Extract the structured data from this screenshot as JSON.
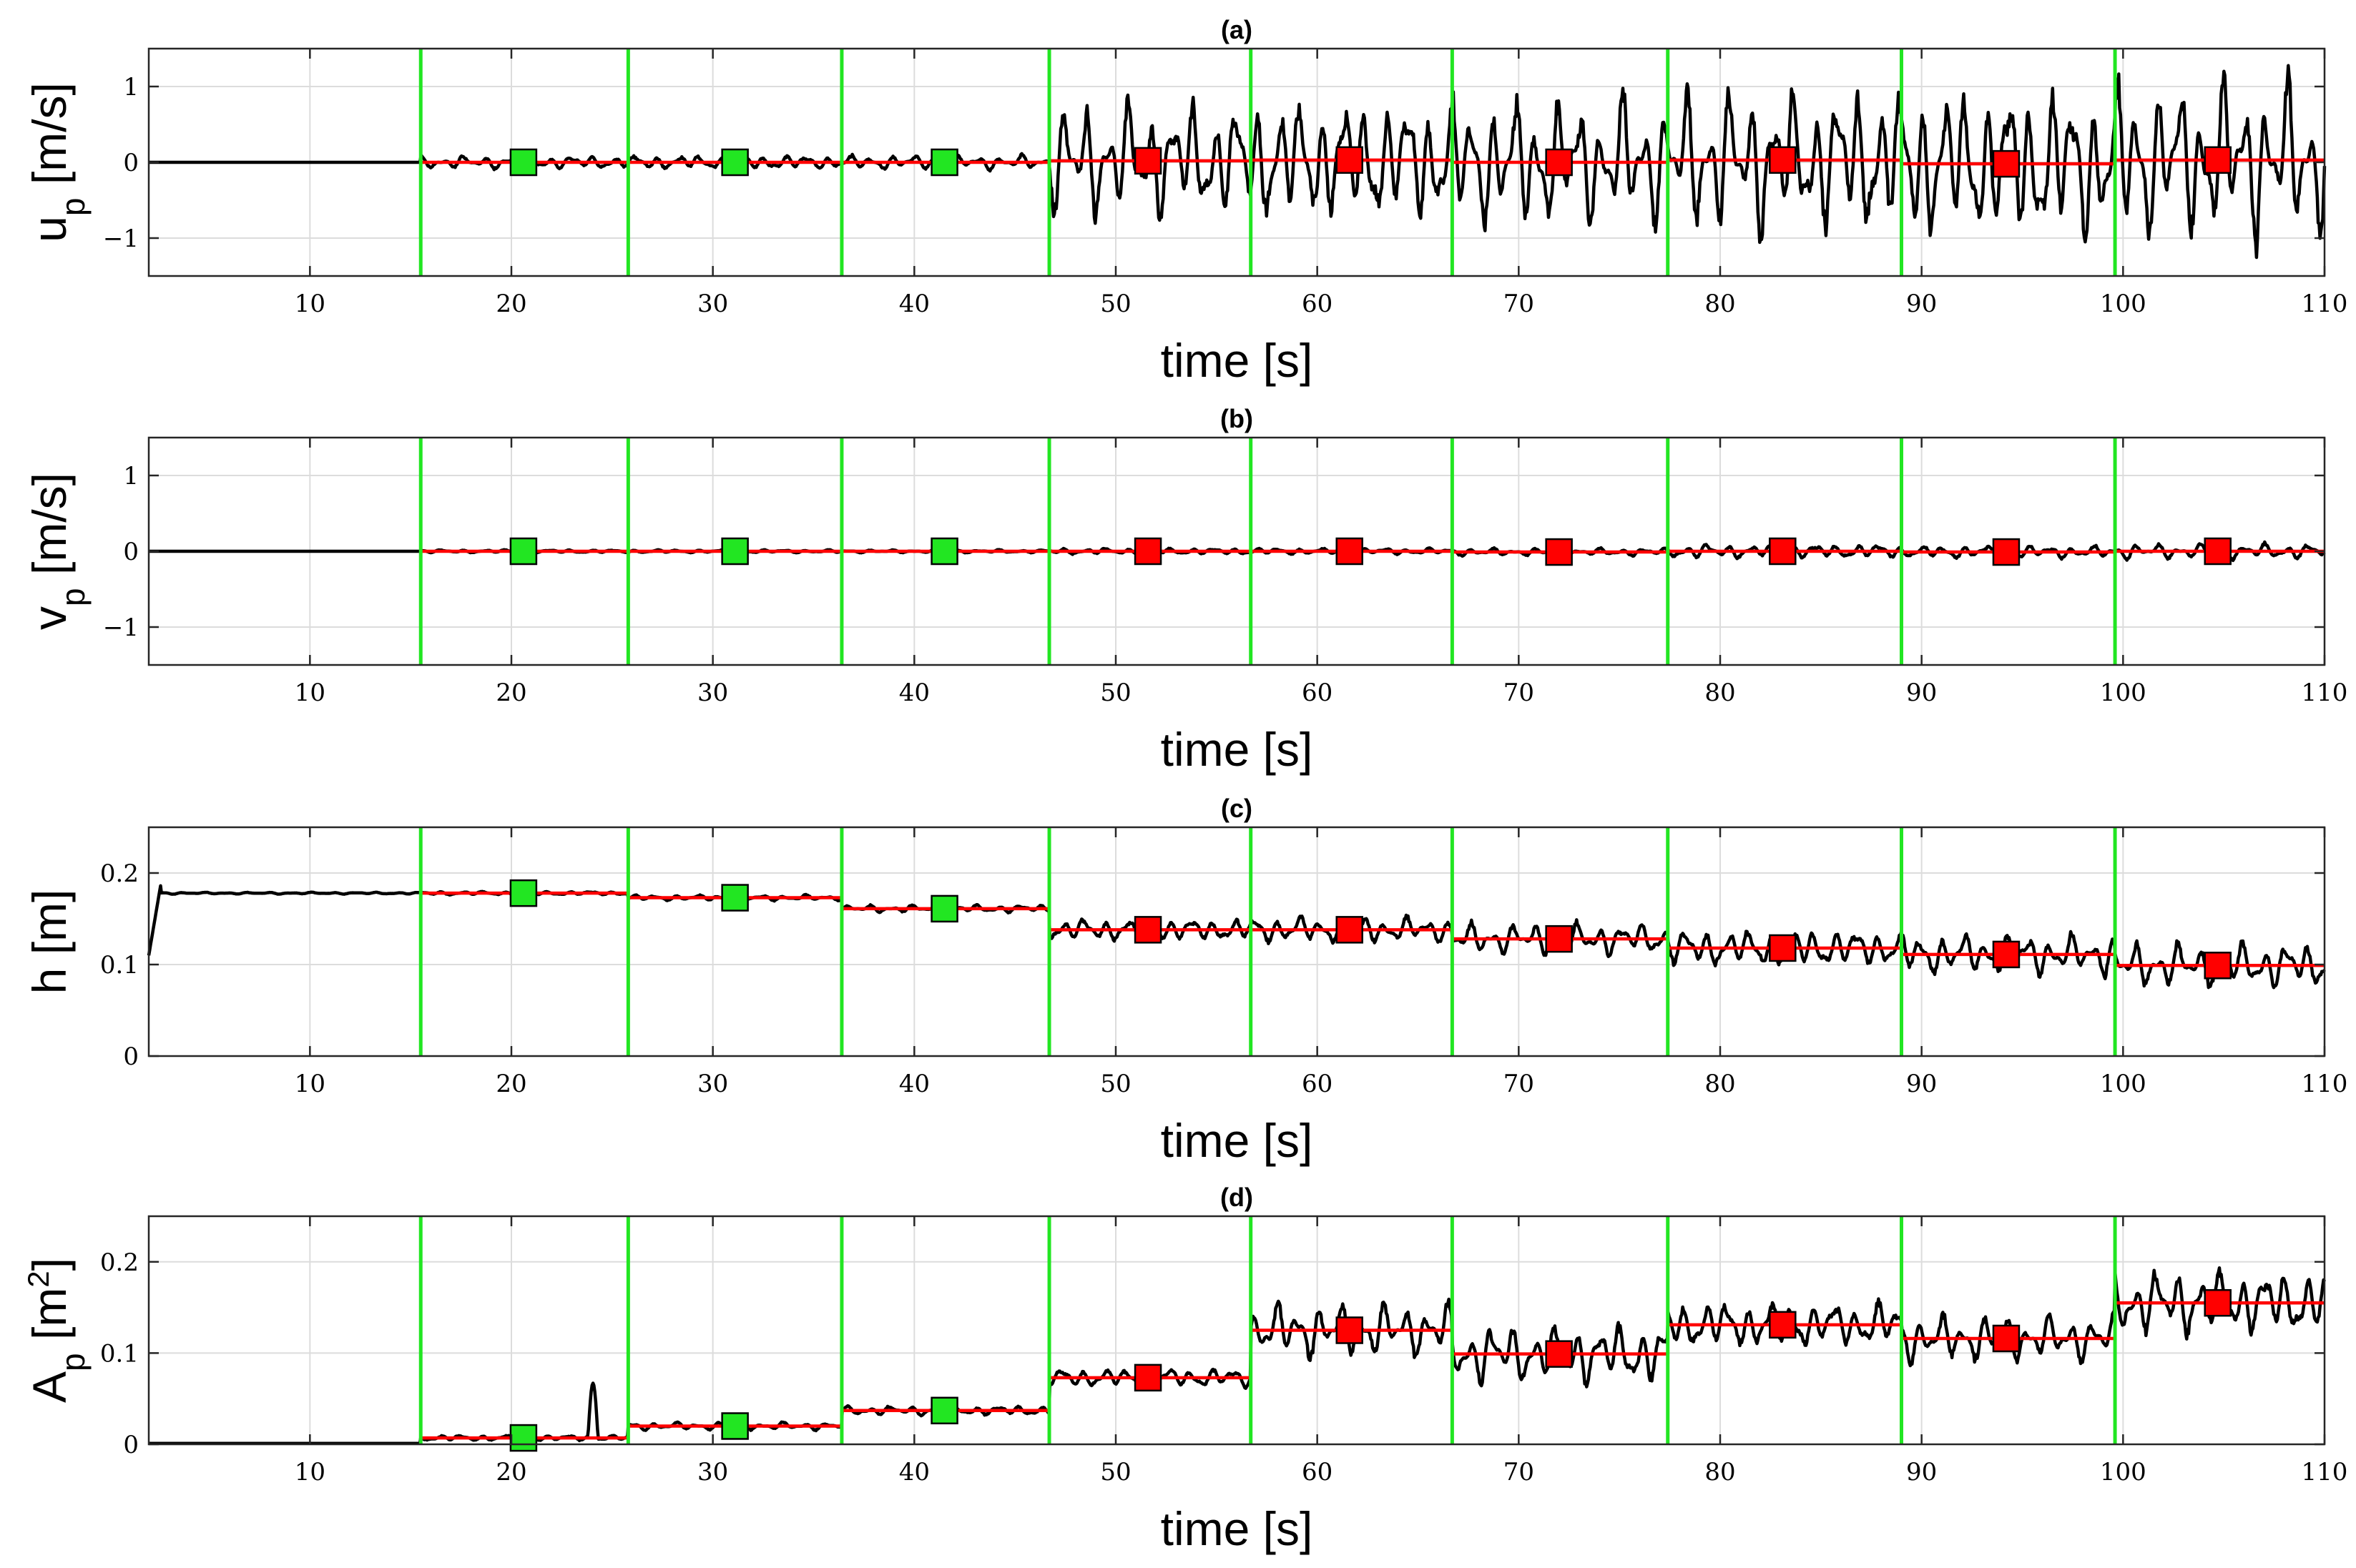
{
  "chart_data": [
    {
      "type": "line",
      "panel_label": "(a)",
      "xlabel": "time [s]",
      "ylabel": {
        "main": "u",
        "sub": "p",
        "rest": " [m/s]"
      },
      "xlim": [
        2,
        110
      ],
      "ylim": [
        -1.5,
        1.5
      ],
      "xticks": [
        10,
        20,
        30,
        40,
        50,
        60,
        70,
        80,
        90,
        100,
        110
      ],
      "xtick_labels": [
        "10",
        "20",
        "30",
        "40",
        "50",
        "60",
        "70",
        "80",
        "90",
        "100",
        "110"
      ],
      "yticks": [
        -1,
        0,
        1
      ],
      "ytick_labels": [
        "−1",
        "0",
        "1"
      ],
      "boundaries": [
        15.5,
        25.8,
        36.4,
        46.7,
        56.7,
        66.7,
        77.4,
        89.0,
        99.6
      ],
      "signal": {
        "initial": 0,
        "noise_amplitudes": [
          0,
          0.08,
          0.09,
          0.09,
          0.75,
          0.8,
          0.85,
          0.95,
          1.0,
          1.05
        ]
      },
      "segment_means": [
        0.0,
        0.0,
        0.0,
        0.02,
        0.03,
        0.0,
        0.03,
        -0.02,
        0.03
      ],
      "markers": [
        {
          "x": 20.6,
          "y": 0.0,
          "color": "green"
        },
        {
          "x": 31.1,
          "y": 0.0,
          "color": "green"
        },
        {
          "x": 41.5,
          "y": 0.0,
          "color": "green"
        },
        {
          "x": 51.6,
          "y": 0.02,
          "color": "red"
        },
        {
          "x": 61.6,
          "y": 0.03,
          "color": "red"
        },
        {
          "x": 72.0,
          "y": 0.0,
          "color": "red"
        },
        {
          "x": 83.1,
          "y": 0.03,
          "color": "red"
        },
        {
          "x": 94.2,
          "y": -0.02,
          "color": "red"
        },
        {
          "x": 104.7,
          "y": 0.03,
          "color": "red"
        }
      ]
    },
    {
      "type": "line",
      "panel_label": "(b)",
      "xlabel": "time [s]",
      "ylabel": {
        "main": "v",
        "sub": "p",
        "rest": " [m/s]"
      },
      "xlim": [
        2,
        110
      ],
      "ylim": [
        -1.5,
        1.5
      ],
      "xticks": [
        10,
        20,
        30,
        40,
        50,
        60,
        70,
        80,
        90,
        100,
        110
      ],
      "xtick_labels": [
        "10",
        "20",
        "30",
        "40",
        "50",
        "60",
        "70",
        "80",
        "90",
        "100",
        "110"
      ],
      "yticks": [
        -1,
        0,
        1
      ],
      "ytick_labels": [
        "−1",
        "0",
        "1"
      ],
      "boundaries": [
        15.5,
        25.8,
        36.4,
        46.7,
        56.7,
        66.7,
        77.4,
        89.0,
        99.6
      ],
      "signal": {
        "initial": 0,
        "noise_amplitudes": [
          0,
          0.02,
          0.02,
          0.02,
          0.04,
          0.04,
          0.05,
          0.09,
          0.08,
          0.1
        ]
      },
      "segment_means": [
        0.0,
        0.0,
        0.0,
        0.0,
        0.0,
        -0.01,
        0.0,
        -0.01,
        0.0
      ],
      "markers": [
        {
          "x": 20.6,
          "y": 0.0,
          "color": "green"
        },
        {
          "x": 31.1,
          "y": 0.0,
          "color": "green"
        },
        {
          "x": 41.5,
          "y": 0.0,
          "color": "green"
        },
        {
          "x": 51.6,
          "y": 0.0,
          "color": "red"
        },
        {
          "x": 61.6,
          "y": 0.0,
          "color": "red"
        },
        {
          "x": 72.0,
          "y": -0.01,
          "color": "red"
        },
        {
          "x": 83.1,
          "y": 0.0,
          "color": "red"
        },
        {
          "x": 94.2,
          "y": -0.01,
          "color": "red"
        },
        {
          "x": 104.7,
          "y": 0.0,
          "color": "red"
        }
      ]
    },
    {
      "type": "line",
      "panel_label": "(c)",
      "xlabel": "time [s]",
      "ylabel": {
        "main": "h [m]",
        "sub": "",
        "rest": ""
      },
      "xlim": [
        2,
        110
      ],
      "ylim": [
        0,
        0.25
      ],
      "xticks": [
        10,
        20,
        30,
        40,
        50,
        60,
        70,
        80,
        90,
        100,
        110
      ],
      "xtick_labels": [
        "10",
        "20",
        "30",
        "40",
        "50",
        "60",
        "70",
        "80",
        "90",
        "100",
        "110"
      ],
      "yticks": [
        0,
        0.1,
        0.2
      ],
      "ytick_labels": [
        "0",
        "0.1",
        "0.2"
      ],
      "boundaries": [
        15.5,
        25.8,
        36.4,
        46.7,
        56.7,
        66.7,
        77.4,
        89.0,
        99.6
      ],
      "signal": {
        "initial": 0.178,
        "noise_amplitudes": [
          0.001,
          0.002,
          0.003,
          0.004,
          0.012,
          0.014,
          0.017,
          0.02,
          0.022,
          0.024
        ]
      },
      "segment_means": [
        0.178,
        0.173,
        0.161,
        0.138,
        0.138,
        0.128,
        0.118,
        0.111,
        0.099
      ],
      "markers": [
        {
          "x": 20.6,
          "y": 0.178,
          "color": "green"
        },
        {
          "x": 31.1,
          "y": 0.173,
          "color": "green"
        },
        {
          "x": 41.5,
          "y": 0.161,
          "color": "green"
        },
        {
          "x": 51.6,
          "y": 0.138,
          "color": "red"
        },
        {
          "x": 61.6,
          "y": 0.138,
          "color": "red"
        },
        {
          "x": 72.0,
          "y": 0.128,
          "color": "red"
        },
        {
          "x": 83.1,
          "y": 0.118,
          "color": "red"
        },
        {
          "x": 94.2,
          "y": 0.111,
          "color": "red"
        },
        {
          "x": 104.7,
          "y": 0.099,
          "color": "red"
        }
      ]
    },
    {
      "type": "line",
      "panel_label": "(d)",
      "xlabel": "time [s]",
      "ylabel": {
        "main": "A",
        "sub": "p",
        "rest": " [m",
        "sup": "2",
        "end": "]"
      },
      "xlim": [
        2,
        110
      ],
      "ylim": [
        0,
        0.25
      ],
      "xticks": [
        10,
        20,
        30,
        40,
        50,
        60,
        70,
        80,
        90,
        100,
        110
      ],
      "xtick_labels": [
        "10",
        "20",
        "30",
        "40",
        "50",
        "60",
        "70",
        "80",
        "90",
        "100",
        "110"
      ],
      "yticks": [
        0,
        0.1,
        0.2
      ],
      "ytick_labels": [
        "0",
        "0.1",
        "0.2"
      ],
      "boundaries": [
        15.5,
        25.8,
        36.4,
        46.7,
        56.7,
        66.7,
        77.4,
        89.0,
        99.6
      ],
      "signal": {
        "initial": 0.001,
        "noise_amplitudes": [
          0,
          0.003,
          0.004,
          0.005,
          0.01,
          0.03,
          0.032,
          0.025,
          0.025,
          0.035
        ]
      },
      "segment_means": [
        0.007,
        0.02,
        0.037,
        0.073,
        0.125,
        0.099,
        0.131,
        0.116,
        0.155
      ],
      "markers": [
        {
          "x": 20.6,
          "y": 0.007,
          "color": "green"
        },
        {
          "x": 31.1,
          "y": 0.02,
          "color": "green"
        },
        {
          "x": 41.5,
          "y": 0.037,
          "color": "green"
        },
        {
          "x": 51.6,
          "y": 0.073,
          "color": "red"
        },
        {
          "x": 61.6,
          "y": 0.125,
          "color": "red"
        },
        {
          "x": 72.0,
          "y": 0.099,
          "color": "red"
        },
        {
          "x": 83.1,
          "y": 0.131,
          "color": "red"
        },
        {
          "x": 94.2,
          "y": 0.116,
          "color": "red"
        },
        {
          "x": 104.7,
          "y": 0.155,
          "color": "red"
        }
      ]
    }
  ],
  "colors": {
    "signal": "#000000",
    "boundary": "#22e622",
    "segment_mean": "#ff0000",
    "marker_green": "#22e622",
    "marker_red": "#ff0000"
  }
}
